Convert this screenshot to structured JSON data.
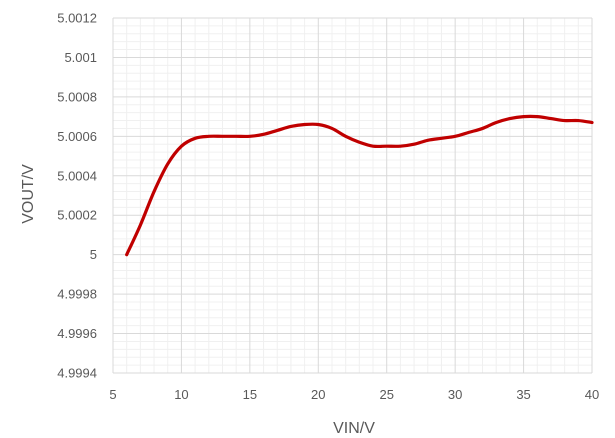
{
  "chart_data": {
    "type": "line",
    "title": "",
    "xlabel": "VIN/V",
    "ylabel": "VOUT/V",
    "xlim": [
      5,
      40
    ],
    "ylim": [
      4.9994,
      5.0012
    ],
    "x_ticks": [
      "5",
      "10",
      "15",
      "20",
      "25",
      "30",
      "35",
      "40"
    ],
    "y_ticks": [
      "4.9994",
      "4.9996",
      "4.9998",
      "5",
      "5.0002",
      "5.0004",
      "5.0006",
      "5.0008",
      "5.001",
      "5.0012"
    ],
    "grid": true,
    "series": [
      {
        "color": "#C00000",
        "x": [
          6,
          7,
          8,
          9,
          10,
          11,
          12,
          13,
          14,
          15,
          16,
          17,
          18,
          19,
          20,
          21,
          22,
          23,
          24,
          25,
          26,
          27,
          28,
          29,
          30,
          31,
          32,
          33,
          34,
          35,
          36,
          37,
          38,
          39,
          40
        ],
        "y": [
          5.0,
          5.00015,
          5.00032,
          5.00046,
          5.00055,
          5.00059,
          5.0006,
          5.0006,
          5.0006,
          5.0006,
          5.00061,
          5.00063,
          5.00065,
          5.00066,
          5.00066,
          5.00064,
          5.0006,
          5.00057,
          5.00055,
          5.00055,
          5.00055,
          5.00056,
          5.00058,
          5.00059,
          5.0006,
          5.00062,
          5.00064,
          5.00067,
          5.00069,
          5.0007,
          5.0007,
          5.00069,
          5.00068,
          5.00068,
          5.00067
        ]
      }
    ]
  }
}
